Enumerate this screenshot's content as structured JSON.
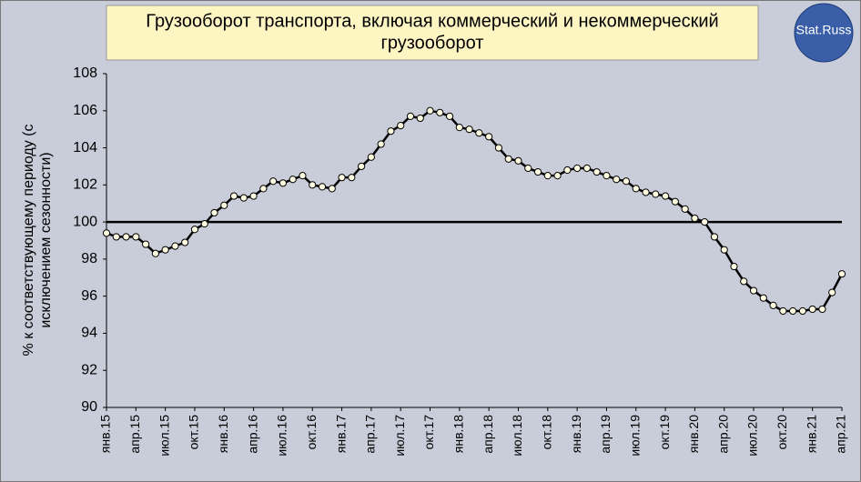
{
  "chart_data": {
    "type": "line",
    "title": [
      "Грузооборот транспорта,  включая коммерческий  и некоммерческий",
      "грузооборот"
    ],
    "logo": "Stat.Russ",
    "ylabel": [
      "% к соответствующему периоду (с",
      "исключением сезонности)"
    ],
    "categories": [
      "янв.15",
      null,
      null,
      "апр.15",
      null,
      null,
      "июл.15",
      null,
      null,
      "окт.15",
      null,
      null,
      "янв.16",
      null,
      null,
      "апр.16",
      null,
      null,
      "июл.16",
      null,
      null,
      "окт.16",
      null,
      null,
      "янв.17",
      null,
      null,
      "апр.17",
      null,
      null,
      "июл.17",
      null,
      null,
      "окт.17",
      null,
      null,
      "янв.18",
      null,
      null,
      "апр.18",
      null,
      null,
      "июл.18",
      null,
      null,
      "окт.18",
      null,
      null,
      "янв.19",
      null,
      null,
      "апр.19",
      null,
      null,
      "июл.19",
      null,
      null,
      "окт.19",
      null,
      null,
      "янв.20",
      null,
      null,
      "апр.20",
      null,
      null,
      "июл.20",
      null,
      null,
      "окт.20",
      null,
      null,
      "янв.21",
      null,
      null,
      "апр.21"
    ],
    "series": [
      {
        "name": "Грузооборот",
        "color": "#000000",
        "marker_fill": "#fffbe0",
        "values": [
          99.4,
          99.2,
          99.2,
          99.2,
          98.8,
          98.3,
          98.5,
          98.7,
          98.9,
          99.6,
          99.9,
          100.5,
          100.9,
          101.4,
          101.3,
          101.4,
          101.8,
          102.2,
          102.1,
          102.3,
          102.5,
          102.0,
          101.9,
          101.8,
          102.4,
          102.4,
          103.0,
          103.5,
          104.2,
          104.9,
          105.2,
          105.7,
          105.6,
          106.0,
          105.9,
          105.7,
          105.1,
          105.0,
          104.8,
          104.6,
          104.0,
          103.4,
          103.3,
          102.9,
          102.7,
          102.5,
          102.5,
          102.8,
          102.9,
          102.9,
          102.7,
          102.5,
          102.3,
          102.2,
          101.8,
          101.6,
          101.5,
          101.4,
          101.1,
          100.7,
          100.2,
          100.0,
          99.2,
          98.5,
          97.6,
          96.8,
          96.3,
          95.9,
          95.5,
          95.2,
          95.2,
          95.2,
          95.3,
          95.3,
          96.2,
          97.2
        ]
      }
    ],
    "reference_line": 100,
    "ylim": [
      90,
      108
    ],
    "yticks": [
      90,
      92,
      94,
      96,
      98,
      100,
      102,
      104,
      106,
      108
    ]
  }
}
